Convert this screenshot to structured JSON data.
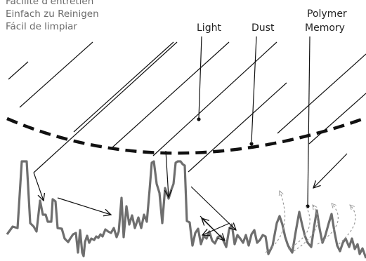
{
  "captions": [
    "Facilité d'entretien",
    "Einfach zu Reinigen",
    "Fácil de limpiar"
  ],
  "labels": {
    "light": "Light",
    "dust": "Dust",
    "polymer_line1": "Polymer",
    "polymer_line2": "Memory"
  },
  "colors": {
    "caption_text": "#6b6b6b",
    "label_text": "#222222",
    "lines": "#111111",
    "surface": "#6e6e6e",
    "memory_dashed": "#9a9a9a"
  }
}
